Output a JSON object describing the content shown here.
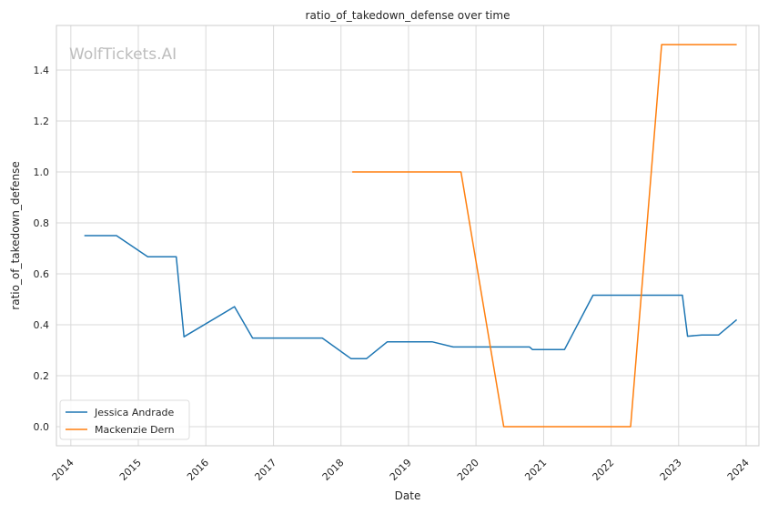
{
  "watermark": "WolfTickets.AI",
  "chart_data": {
    "type": "line",
    "title": "ratio_of_takedown_defense over time",
    "xlabel": "Date",
    "ylabel": "ratio_of_takedown_defense",
    "xlim": [
      "2013-10-15",
      "2024-03-10"
    ],
    "ylim": [
      -0.075,
      1.575
    ],
    "x_ticks": [
      "2014",
      "2015",
      "2016",
      "2017",
      "2018",
      "2019",
      "2020",
      "2021",
      "2022",
      "2023",
      "2024"
    ],
    "y_ticks": [
      "0.0",
      "0.2",
      "0.4",
      "0.6",
      "0.8",
      "1.0",
      "1.2",
      "1.4"
    ],
    "grid": true,
    "legend_position": "lower-left",
    "series": [
      {
        "name": "Jessica Andrade",
        "color": "#1f77b4",
        "x": [
          "2014-03-15",
          "2014-09-05",
          "2015-02-21",
          "2015-07-25",
          "2015-09-05",
          "2016-06-04",
          "2016-09-10",
          "2017-09-22",
          "2018-02-24",
          "2018-05-19",
          "2018-09-08",
          "2019-05-11",
          "2019-08-31",
          "2020-10-17",
          "2020-11-01",
          "2021-04-24",
          "2021-09-25",
          "2023-01-21",
          "2023-02-18",
          "2023-05-06",
          "2023-08-05",
          "2023-11-11"
        ],
        "y": [
          0.75,
          0.75,
          0.667,
          0.667,
          0.353,
          0.471,
          0.348,
          0.348,
          0.267,
          0.267,
          0.333,
          0.333,
          0.313,
          0.313,
          0.303,
          0.303,
          0.516,
          0.516,
          0.355,
          0.36,
          0.36,
          0.42
        ]
      },
      {
        "name": "Mackenzie Dern",
        "color": "#ff7f0e",
        "x": [
          "2018-03-03",
          "2019-10-12",
          "2020-05-30",
          "2022-04-16",
          "2022-10-01",
          "2023-11-11"
        ],
        "y": [
          1.0,
          1.0,
          0.0,
          0.0,
          1.5,
          1.5
        ]
      }
    ]
  }
}
